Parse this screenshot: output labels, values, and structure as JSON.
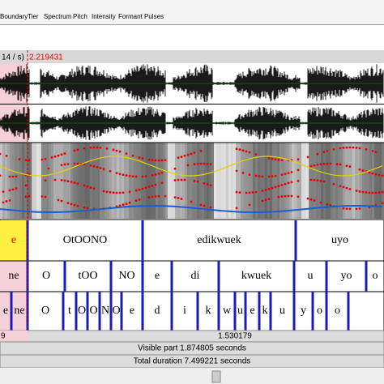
{
  "menu": [
    "Boundary",
    "Tier",
    "Spectrum",
    "Pitch",
    "Intensity",
    "Formant",
    "Pulses"
  ],
  "top_bar": {
    "left": "14 / s)",
    "cursor": "2.219431"
  },
  "tiers": [
    {
      "labels": [
        "e",
        "OtOONO",
        "edikwuek",
        "uyo"
      ]
    },
    {
      "labels": [
        "ne",
        "O",
        "tOO",
        "NO",
        "e",
        "di",
        "kwuek",
        "u",
        "yo",
        "o"
      ]
    },
    {
      "labels": [
        "e",
        "ne",
        "O",
        "t",
        "O",
        "O",
        "N",
        "O",
        "e",
        "d",
        "i",
        "k",
        "w",
        "u",
        "e",
        "k",
        "u",
        "y",
        "o",
        "o"
      ]
    }
  ],
  "time_row": {
    "left": "9",
    "center": "1.530179"
  },
  "visible_part": "Visible part 1.874805 seconds",
  "total_duration": "Total duration 7.499221 seconds"
}
